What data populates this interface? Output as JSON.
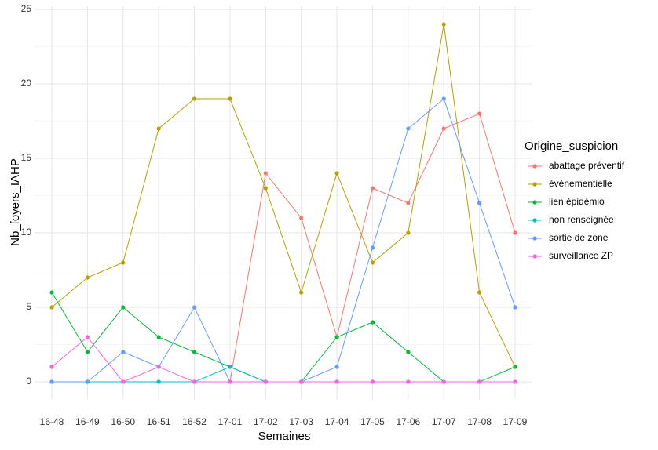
{
  "chart_data": {
    "type": "line",
    "x_label": "Semaines",
    "y_label": "Nb_foyers_IAHP",
    "categories": [
      "16-48",
      "16-49",
      "16-50",
      "16-51",
      "16-52",
      "17-01",
      "17-02",
      "17-03",
      "17-04",
      "17-05",
      "17-06",
      "17-07",
      "17-08",
      "17-09"
    ],
    "series": [
      {
        "name": "abattage préventif",
        "color": "#F8766D",
        "values": [
          0,
          0,
          0,
          0,
          0,
          0,
          14,
          11,
          3,
          13,
          12,
          17,
          18,
          10
        ]
      },
      {
        "name": "évènementielle",
        "color": "#B79F00",
        "values": [
          5,
          7,
          8,
          17,
          19,
          19,
          13,
          6,
          14,
          8,
          10,
          24,
          6,
          1
        ]
      },
      {
        "name": "lien épidémio",
        "color": "#00BA38",
        "values": [
          6,
          2,
          5,
          3,
          2,
          1,
          0,
          0,
          3,
          4,
          2,
          0,
          0,
          1
        ]
      },
      {
        "name": "non renseignée",
        "color": "#00BFC4",
        "values": [
          0,
          0,
          0,
          0,
          0,
          1,
          0,
          0,
          0,
          0,
          0,
          0,
          0,
          0
        ]
      },
      {
        "name": "sortie de zone",
        "color": "#619CFF",
        "values": [
          0,
          0,
          2,
          1,
          5,
          0,
          0,
          0,
          1,
          9,
          17,
          19,
          12,
          5
        ]
      },
      {
        "name": "surveillance ZP",
        "color": "#F564E3",
        "values": [
          1,
          3,
          0,
          1,
          0,
          0,
          0,
          0,
          0,
          0,
          0,
          0,
          0,
          0
        ]
      }
    ],
    "legend_title": "Origine_suspicion",
    "legend_position": "right",
    "ylim": [
      -1.2,
      25.2
    ],
    "yticks": [
      0,
      5,
      10,
      15,
      20,
      25
    ],
    "grid": true
  }
}
